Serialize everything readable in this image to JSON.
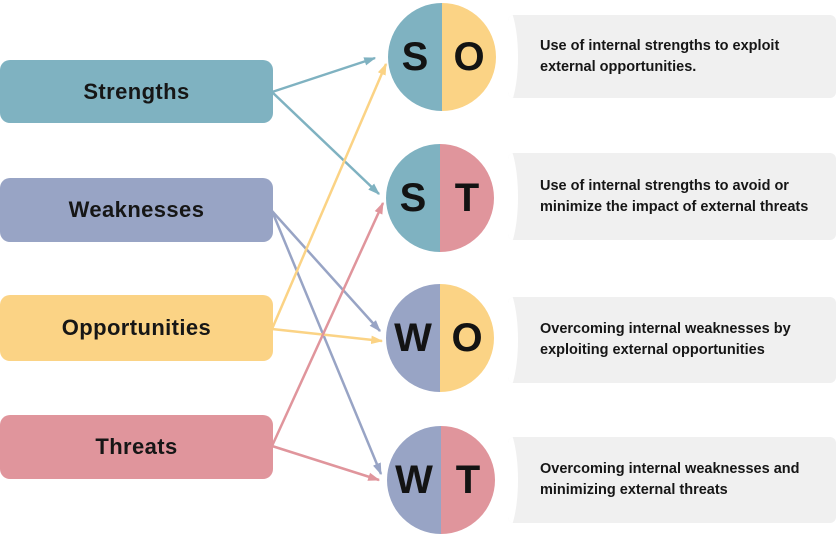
{
  "palette": {
    "strengths": "#7FB2C1",
    "weaknesses": "#98A4C5",
    "opportunities": "#FBD385",
    "threats": "#E0959C",
    "panel_bg": "#F0F0F0",
    "text": "#161616"
  },
  "diagram": {
    "categories": [
      {
        "id": "strengths",
        "label": "Strengths"
      },
      {
        "id": "weaknesses",
        "label": "Weaknesses"
      },
      {
        "id": "opportunities",
        "label": "Opportunities"
      },
      {
        "id": "threats",
        "label": "Threats"
      }
    ],
    "combinations": [
      {
        "id": "so",
        "letters": [
          "S",
          "O"
        ],
        "halves": [
          "strengths",
          "opportunities"
        ],
        "lines": [
          "Use of internal strengths to exploit",
          "external opportunities."
        ]
      },
      {
        "id": "st",
        "letters": [
          "S",
          "T"
        ],
        "halves": [
          "strengths",
          "threats"
        ],
        "lines": [
          "Use of internal strengths to avoid or",
          "minimize the impact of external threats"
        ]
      },
      {
        "id": "wo",
        "letters": [
          "W",
          "O"
        ],
        "halves": [
          "weaknesses",
          "opportunities"
        ],
        "lines": [
          "Overcoming internal weaknesses by",
          "exploiting external opportunities"
        ]
      },
      {
        "id": "wt",
        "letters": [
          "W",
          "T"
        ],
        "halves": [
          "weaknesses",
          "threats"
        ],
        "lines": [
          "Overcoming internal weaknesses and",
          "minimizing external threats"
        ]
      }
    ],
    "connections": [
      {
        "from": "strengths",
        "to": "so"
      },
      {
        "from": "strengths",
        "to": "st"
      },
      {
        "from": "weaknesses",
        "to": "wo"
      },
      {
        "from": "weaknesses",
        "to": "wt"
      },
      {
        "from": "opportunities",
        "to": "so"
      },
      {
        "from": "opportunities",
        "to": "wo"
      },
      {
        "from": "threats",
        "to": "st"
      },
      {
        "from": "threats",
        "to": "wt"
      }
    ]
  }
}
